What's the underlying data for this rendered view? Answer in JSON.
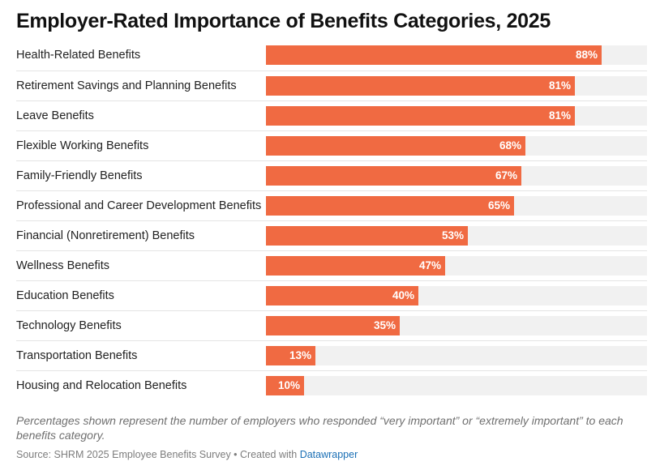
{
  "chart_data": {
    "type": "bar",
    "orientation": "horizontal",
    "title": "Employer-Rated Importance of Benefits Categories, 2025",
    "categories": [
      "Health-Related Benefits",
      "Retirement Savings and Planning Benefits",
      "Leave Benefits",
      "Flexible Working Benefits",
      "Family-Friendly Benefits",
      "Professional and Career Development Benefits",
      "Financial (Nonretirement) Benefits",
      "Wellness Benefits",
      "Education Benefits",
      "Technology Benefits",
      "Transportation Benefits",
      "Housing and Relocation Benefits"
    ],
    "values": [
      88,
      81,
      81,
      68,
      67,
      65,
      53,
      47,
      40,
      35,
      13,
      10
    ],
    "value_labels": [
      "88%",
      "81%",
      "81%",
      "68%",
      "67%",
      "65%",
      "53%",
      "47%",
      "40%",
      "35%",
      "13%",
      "10%"
    ],
    "unit": "%",
    "xlim": [
      0,
      100
    ],
    "xlabel": "",
    "ylabel": "",
    "grid": false,
    "legend": "none"
  },
  "note": "Percentages shown represent the number of employers who responded “very important” or “extremely important” to each benefits category.",
  "source": {
    "prefix": "Source: SHRM 2025 Employee Benefits Survey • Created with ",
    "tool": "Datawrapper"
  },
  "colors": {
    "bar": "#f06a42",
    "track": "#f1f1f1",
    "value_label": "#ffffff",
    "divider": "#e4e4e4",
    "link": "#1a6fb5"
  }
}
